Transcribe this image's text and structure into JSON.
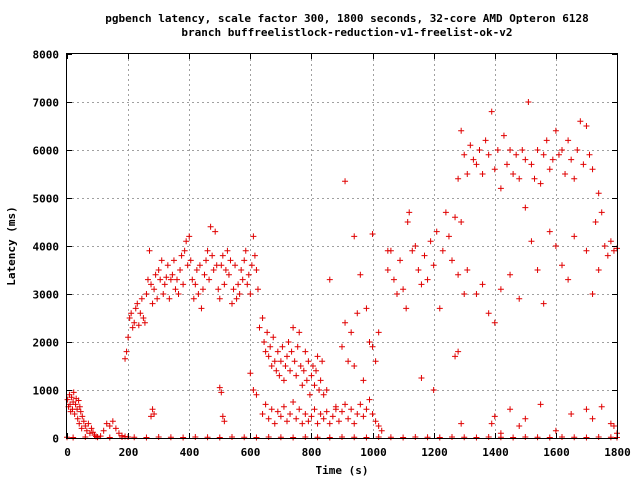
{
  "chart_data": {
    "type": "scatter",
    "title": "pgbench latency, scale factor 300, 1800 seconds, 32-core AMD Opteron 6128",
    "subtitle": "branch buffreelistlock-reduction-v1-freelist-ok-v2",
    "xlabel": "Time (s)",
    "ylabel": "Latency (ms)",
    "xlim": [
      0,
      1800
    ],
    "ylim": [
      0,
      8000
    ],
    "x_ticks": [
      "0",
      "200",
      "400",
      "600",
      "800",
      "1000",
      "1200",
      "1400",
      "1600",
      "1800"
    ],
    "y_ticks": [
      "0",
      "1000",
      "2000",
      "3000",
      "4000",
      "5000",
      "6000",
      "7000",
      "8000"
    ],
    "grid": true,
    "marker": "+",
    "color": "#e00000",
    "points": [
      [
        2,
        800
      ],
      [
        5,
        650
      ],
      [
        8,
        900
      ],
      [
        10,
        700
      ],
      [
        12,
        550
      ],
      [
        15,
        850
      ],
      [
        18,
        600
      ],
      [
        20,
        750
      ],
      [
        22,
        950
      ],
      [
        25,
        500
      ],
      [
        28,
        700
      ],
      [
        30,
        820
      ],
      [
        33,
        600
      ],
      [
        35,
        400
      ],
      [
        38,
        780
      ],
      [
        40,
        300
      ],
      [
        42,
        650
      ],
      [
        45,
        550
      ],
      [
        48,
        200
      ],
      [
        50,
        450
      ],
      [
        55,
        350
      ],
      [
        60,
        250
      ],
      [
        65,
        150
      ],
      [
        70,
        300
      ],
      [
        75,
        100
      ],
      [
        80,
        200
      ],
      [
        85,
        120
      ],
      [
        90,
        60
      ],
      [
        95,
        30
      ],
      [
        100,
        20
      ],
      [
        110,
        40
      ],
      [
        120,
        150
      ],
      [
        130,
        300
      ],
      [
        140,
        250
      ],
      [
        150,
        350
      ],
      [
        160,
        200
      ],
      [
        170,
        100
      ],
      [
        180,
        50
      ],
      [
        190,
        30
      ],
      [
        200,
        20
      ],
      [
        190,
        1650
      ],
      [
        195,
        1800
      ],
      [
        200,
        2100
      ],
      [
        205,
        2500
      ],
      [
        210,
        2600
      ],
      [
        215,
        2300
      ],
      [
        220,
        2400
      ],
      [
        225,
        2700
      ],
      [
        230,
        2800
      ],
      [
        235,
        2350
      ],
      [
        240,
        2600
      ],
      [
        245,
        2900
      ],
      [
        250,
        2500
      ],
      [
        255,
        2400
      ],
      [
        260,
        3000
      ],
      [
        265,
        3300
      ],
      [
        270,
        3900
      ],
      [
        275,
        3200
      ],
      [
        280,
        2800
      ],
      [
        285,
        3100
      ],
      [
        290,
        3400
      ],
      [
        295,
        2900
      ],
      [
        300,
        3500
      ],
      [
        305,
        3300
      ],
      [
        310,
        3700
      ],
      [
        315,
        3000
      ],
      [
        320,
        3200
      ],
      [
        325,
        3350
      ],
      [
        330,
        3600
      ],
      [
        335,
        2900
      ],
      [
        340,
        3300
      ],
      [
        345,
        3400
      ],
      [
        350,
        3700
      ],
      [
        355,
        3100
      ],
      [
        360,
        3300
      ],
      [
        365,
        3000
      ],
      [
        370,
        3500
      ],
      [
        375,
        3800
      ],
      [
        380,
        3200
      ],
      [
        385,
        3900
      ],
      [
        390,
        4100
      ],
      [
        395,
        3600
      ],
      [
        400,
        4200
      ],
      [
        405,
        3700
      ],
      [
        410,
        3300
      ],
      [
        415,
        2900
      ],
      [
        420,
        3200
      ],
      [
        425,
        3500
      ],
      [
        430,
        3000
      ],
      [
        435,
        3600
      ],
      [
        440,
        2700
      ],
      [
        445,
        3100
      ],
      [
        450,
        3400
      ],
      [
        455,
        3700
      ],
      [
        460,
        3900
      ],
      [
        465,
        3300
      ],
      [
        470,
        4400
      ],
      [
        475,
        3800
      ],
      [
        480,
        3500
      ],
      [
        485,
        4300
      ],
      [
        490,
        3600
      ],
      [
        495,
        3100
      ],
      [
        500,
        2900
      ],
      [
        505,
        3600
      ],
      [
        510,
        3800
      ],
      [
        515,
        3200
      ],
      [
        520,
        3500
      ],
      [
        525,
        3900
      ],
      [
        530,
        3400
      ],
      [
        535,
        3700
      ],
      [
        540,
        2800
      ],
      [
        545,
        3100
      ],
      [
        550,
        3600
      ],
      [
        555,
        2900
      ],
      [
        560,
        3200
      ],
      [
        565,
        3000
      ],
      [
        570,
        3500
      ],
      [
        575,
        3300
      ],
      [
        580,
        3700
      ],
      [
        585,
        3900
      ],
      [
        590,
        3200
      ],
      [
        595,
        3400
      ],
      [
        600,
        3000
      ],
      [
        605,
        3600
      ],
      [
        610,
        4200
      ],
      [
        615,
        3800
      ],
      [
        620,
        3500
      ],
      [
        625,
        3100
      ],
      [
        500,
        1050
      ],
      [
        505,
        950
      ],
      [
        510,
        450
      ],
      [
        515,
        350
      ],
      [
        280,
        600
      ],
      [
        285,
        500
      ],
      [
        275,
        450
      ],
      [
        600,
        1350
      ],
      [
        610,
        1000
      ],
      [
        620,
        900
      ],
      [
        630,
        2300
      ],
      [
        640,
        2500
      ],
      [
        645,
        2000
      ],
      [
        650,
        1800
      ],
      [
        655,
        2200
      ],
      [
        660,
        1700
      ],
      [
        665,
        1900
      ],
      [
        670,
        1500
      ],
      [
        675,
        2100
      ],
      [
        680,
        1600
      ],
      [
        685,
        1400
      ],
      [
        690,
        1800
      ],
      [
        695,
        1300
      ],
      [
        700,
        1600
      ],
      [
        705,
        1900
      ],
      [
        710,
        1200
      ],
      [
        715,
        1500
      ],
      [
        720,
        1700
      ],
      [
        725,
        2000
      ],
      [
        730,
        1400
      ],
      [
        735,
        1800
      ],
      [
        740,
        2300
      ],
      [
        745,
        1600
      ],
      [
        750,
        1300
      ],
      [
        755,
        1900
      ],
      [
        760,
        2200
      ],
      [
        765,
        1500
      ],
      [
        770,
        1100
      ],
      [
        775,
        1400
      ],
      [
        780,
        1800
      ],
      [
        785,
        1200
      ],
      [
        790,
        1600
      ],
      [
        795,
        900
      ],
      [
        800,
        1300
      ],
      [
        805,
        1500
      ],
      [
        810,
        1100
      ],
      [
        815,
        1400
      ],
      [
        820,
        1700
      ],
      [
        825,
        1000
      ],
      [
        830,
        1200
      ],
      [
        835,
        1600
      ],
      [
        840,
        900
      ],
      [
        640,
        500
      ],
      [
        650,
        700
      ],
      [
        660,
        400
      ],
      [
        670,
        600
      ],
      [
        680,
        300
      ],
      [
        690,
        550
      ],
      [
        700,
        450
      ],
      [
        710,
        650
      ],
      [
        720,
        350
      ],
      [
        730,
        500
      ],
      [
        740,
        750
      ],
      [
        750,
        400
      ],
      [
        760,
        600
      ],
      [
        770,
        300
      ],
      [
        780,
        500
      ],
      [
        790,
        350
      ],
      [
        800,
        450
      ],
      [
        810,
        600
      ],
      [
        820,
        300
      ],
      [
        830,
        500
      ],
      [
        840,
        400
      ],
      [
        850,
        550
      ],
      [
        860,
        300
      ],
      [
        870,
        450
      ],
      [
        880,
        600
      ],
      [
        890,
        350
      ],
      [
        900,
        550
      ],
      [
        910,
        700
      ],
      [
        920,
        400
      ],
      [
        930,
        600
      ],
      [
        940,
        300
      ],
      [
        950,
        500
      ],
      [
        960,
        700
      ],
      [
        970,
        450
      ],
      [
        980,
        600
      ],
      [
        990,
        800
      ],
      [
        1000,
        500
      ],
      [
        1010,
        350
      ],
      [
        1020,
        250
      ],
      [
        1030,
        150
      ],
      [
        850,
        1000
      ],
      [
        880,
        650
      ],
      [
        900,
        1900
      ],
      [
        910,
        2400
      ],
      [
        920,
        1600
      ],
      [
        930,
        2200
      ],
      [
        940,
        1500
      ],
      [
        950,
        2600
      ],
      [
        960,
        3400
      ],
      [
        970,
        1200
      ],
      [
        980,
        2700
      ],
      [
        990,
        2000
      ],
      [
        1000,
        1900
      ],
      [
        1010,
        1600
      ],
      [
        1020,
        2200
      ],
      [
        910,
        5350
      ],
      [
        940,
        4200
      ],
      [
        1000,
        4250
      ],
      [
        1050,
        3900
      ],
      [
        860,
        3300
      ],
      [
        1050,
        3500
      ],
      [
        1060,
        3900
      ],
      [
        1070,
        3300
      ],
      [
        1080,
        3000
      ],
      [
        1090,
        3700
      ],
      [
        1100,
        3100
      ],
      [
        1110,
        2700
      ],
      [
        1115,
        4500
      ],
      [
        1120,
        4700
      ],
      [
        1130,
        3900
      ],
      [
        1140,
        4000
      ],
      [
        1150,
        3500
      ],
      [
        1160,
        3200
      ],
      [
        1170,
        3800
      ],
      [
        1180,
        3300
      ],
      [
        1190,
        4100
      ],
      [
        1200,
        3600
      ],
      [
        1210,
        4300
      ],
      [
        1220,
        2700
      ],
      [
        1230,
        3900
      ],
      [
        1240,
        4700
      ],
      [
        1250,
        4200
      ],
      [
        1260,
        3700
      ],
      [
        1270,
        4600
      ],
      [
        1280,
        3400
      ],
      [
        1290,
        4500
      ],
      [
        1300,
        3000
      ],
      [
        1310,
        3500
      ],
      [
        1160,
        1250
      ],
      [
        1200,
        1000
      ],
      [
        1270,
        1700
      ],
      [
        1280,
        1800
      ],
      [
        1290,
        300
      ],
      [
        1280,
        5400
      ],
      [
        1290,
        6400
      ],
      [
        1300,
        5900
      ],
      [
        1310,
        5500
      ],
      [
        1320,
        6100
      ],
      [
        1330,
        5800
      ],
      [
        1340,
        5700
      ],
      [
        1350,
        6000
      ],
      [
        1360,
        5500
      ],
      [
        1370,
        6200
      ],
      [
        1380,
        5900
      ],
      [
        1390,
        6800
      ],
      [
        1400,
        5600
      ],
      [
        1410,
        6000
      ],
      [
        1420,
        5200
      ],
      [
        1430,
        6300
      ],
      [
        1440,
        5700
      ],
      [
        1450,
        6000
      ],
      [
        1460,
        5500
      ],
      [
        1470,
        5900
      ],
      [
        1480,
        5400
      ],
      [
        1490,
        6000
      ],
      [
        1500,
        5800
      ],
      [
        1510,
        7000
      ],
      [
        1520,
        5700
      ],
      [
        1530,
        5400
      ],
      [
        1540,
        6000
      ],
      [
        1550,
        5300
      ],
      [
        1560,
        5900
      ],
      [
        1570,
        6200
      ],
      [
        1580,
        5600
      ],
      [
        1590,
        5800
      ],
      [
        1600,
        6400
      ],
      [
        1610,
        5900
      ],
      [
        1620,
        6000
      ],
      [
        1630,
        5500
      ],
      [
        1640,
        6200
      ],
      [
        1650,
        5800
      ],
      [
        1660,
        5400
      ],
      [
        1670,
        6000
      ],
      [
        1680,
        6600
      ],
      [
        1690,
        5700
      ],
      [
        1700,
        6500
      ],
      [
        1710,
        5900
      ],
      [
        1720,
        5600
      ],
      [
        1730,
        4500
      ],
      [
        1740,
        5100
      ],
      [
        1750,
        4700
      ],
      [
        1760,
        4000
      ],
      [
        1770,
        3800
      ],
      [
        1780,
        4100
      ],
      [
        1790,
        3900
      ],
      [
        1800,
        3950
      ],
      [
        1340,
        3000
      ],
      [
        1360,
        3200
      ],
      [
        1380,
        2600
      ],
      [
        1400,
        2400
      ],
      [
        1420,
        3100
      ],
      [
        1450,
        3400
      ],
      [
        1480,
        2900
      ],
      [
        1500,
        4800
      ],
      [
        1520,
        4100
      ],
      [
        1540,
        3500
      ],
      [
        1560,
        2800
      ],
      [
        1580,
        4300
      ],
      [
        1600,
        4000
      ],
      [
        1620,
        3600
      ],
      [
        1640,
        3300
      ],
      [
        1660,
        4200
      ],
      [
        1700,
        3900
      ],
      [
        1720,
        3000
      ],
      [
        1740,
        3500
      ],
      [
        1390,
        300
      ],
      [
        1400,
        450
      ],
      [
        1420,
        100
      ],
      [
        1450,
        600
      ],
      [
        1480,
        250
      ],
      [
        1500,
        400
      ],
      [
        1550,
        700
      ],
      [
        1600,
        150
      ],
      [
        1650,
        500
      ],
      [
        1700,
        600
      ],
      [
        1720,
        400
      ],
      [
        1750,
        650
      ],
      [
        1780,
        300
      ],
      [
        1790,
        250
      ],
      [
        1800,
        100
      ],
      [
        0,
        15
      ],
      [
        20,
        10
      ],
      [
        60,
        20
      ],
      [
        100,
        15
      ],
      [
        140,
        10
      ],
      [
        180,
        20
      ],
      [
        220,
        15
      ],
      [
        260,
        10
      ],
      [
        300,
        20
      ],
      [
        340,
        15
      ],
      [
        380,
        10
      ],
      [
        420,
        20
      ],
      [
        460,
        15
      ],
      [
        500,
        10
      ],
      [
        540,
        20
      ],
      [
        580,
        15
      ],
      [
        620,
        10
      ],
      [
        660,
        20
      ],
      [
        700,
        15
      ],
      [
        740,
        10
      ],
      [
        780,
        20
      ],
      [
        820,
        15
      ],
      [
        860,
        10
      ],
      [
        900,
        20
      ],
      [
        940,
        15
      ],
      [
        980,
        10
      ],
      [
        1020,
        20
      ],
      [
        1060,
        15
      ],
      [
        1100,
        10
      ],
      [
        1140,
        20
      ],
      [
        1180,
        15
      ],
      [
        1220,
        10
      ],
      [
        1260,
        20
      ],
      [
        1300,
        15
      ],
      [
        1340,
        10
      ],
      [
        1380,
        20
      ],
      [
        1420,
        15
      ],
      [
        1460,
        10
      ],
      [
        1500,
        20
      ],
      [
        1540,
        15
      ],
      [
        1580,
        10
      ],
      [
        1620,
        20
      ],
      [
        1660,
        15
      ],
      [
        1700,
        10
      ],
      [
        1740,
        20
      ],
      [
        1780,
        15
      ],
      [
        1800,
        10
      ]
    ]
  }
}
